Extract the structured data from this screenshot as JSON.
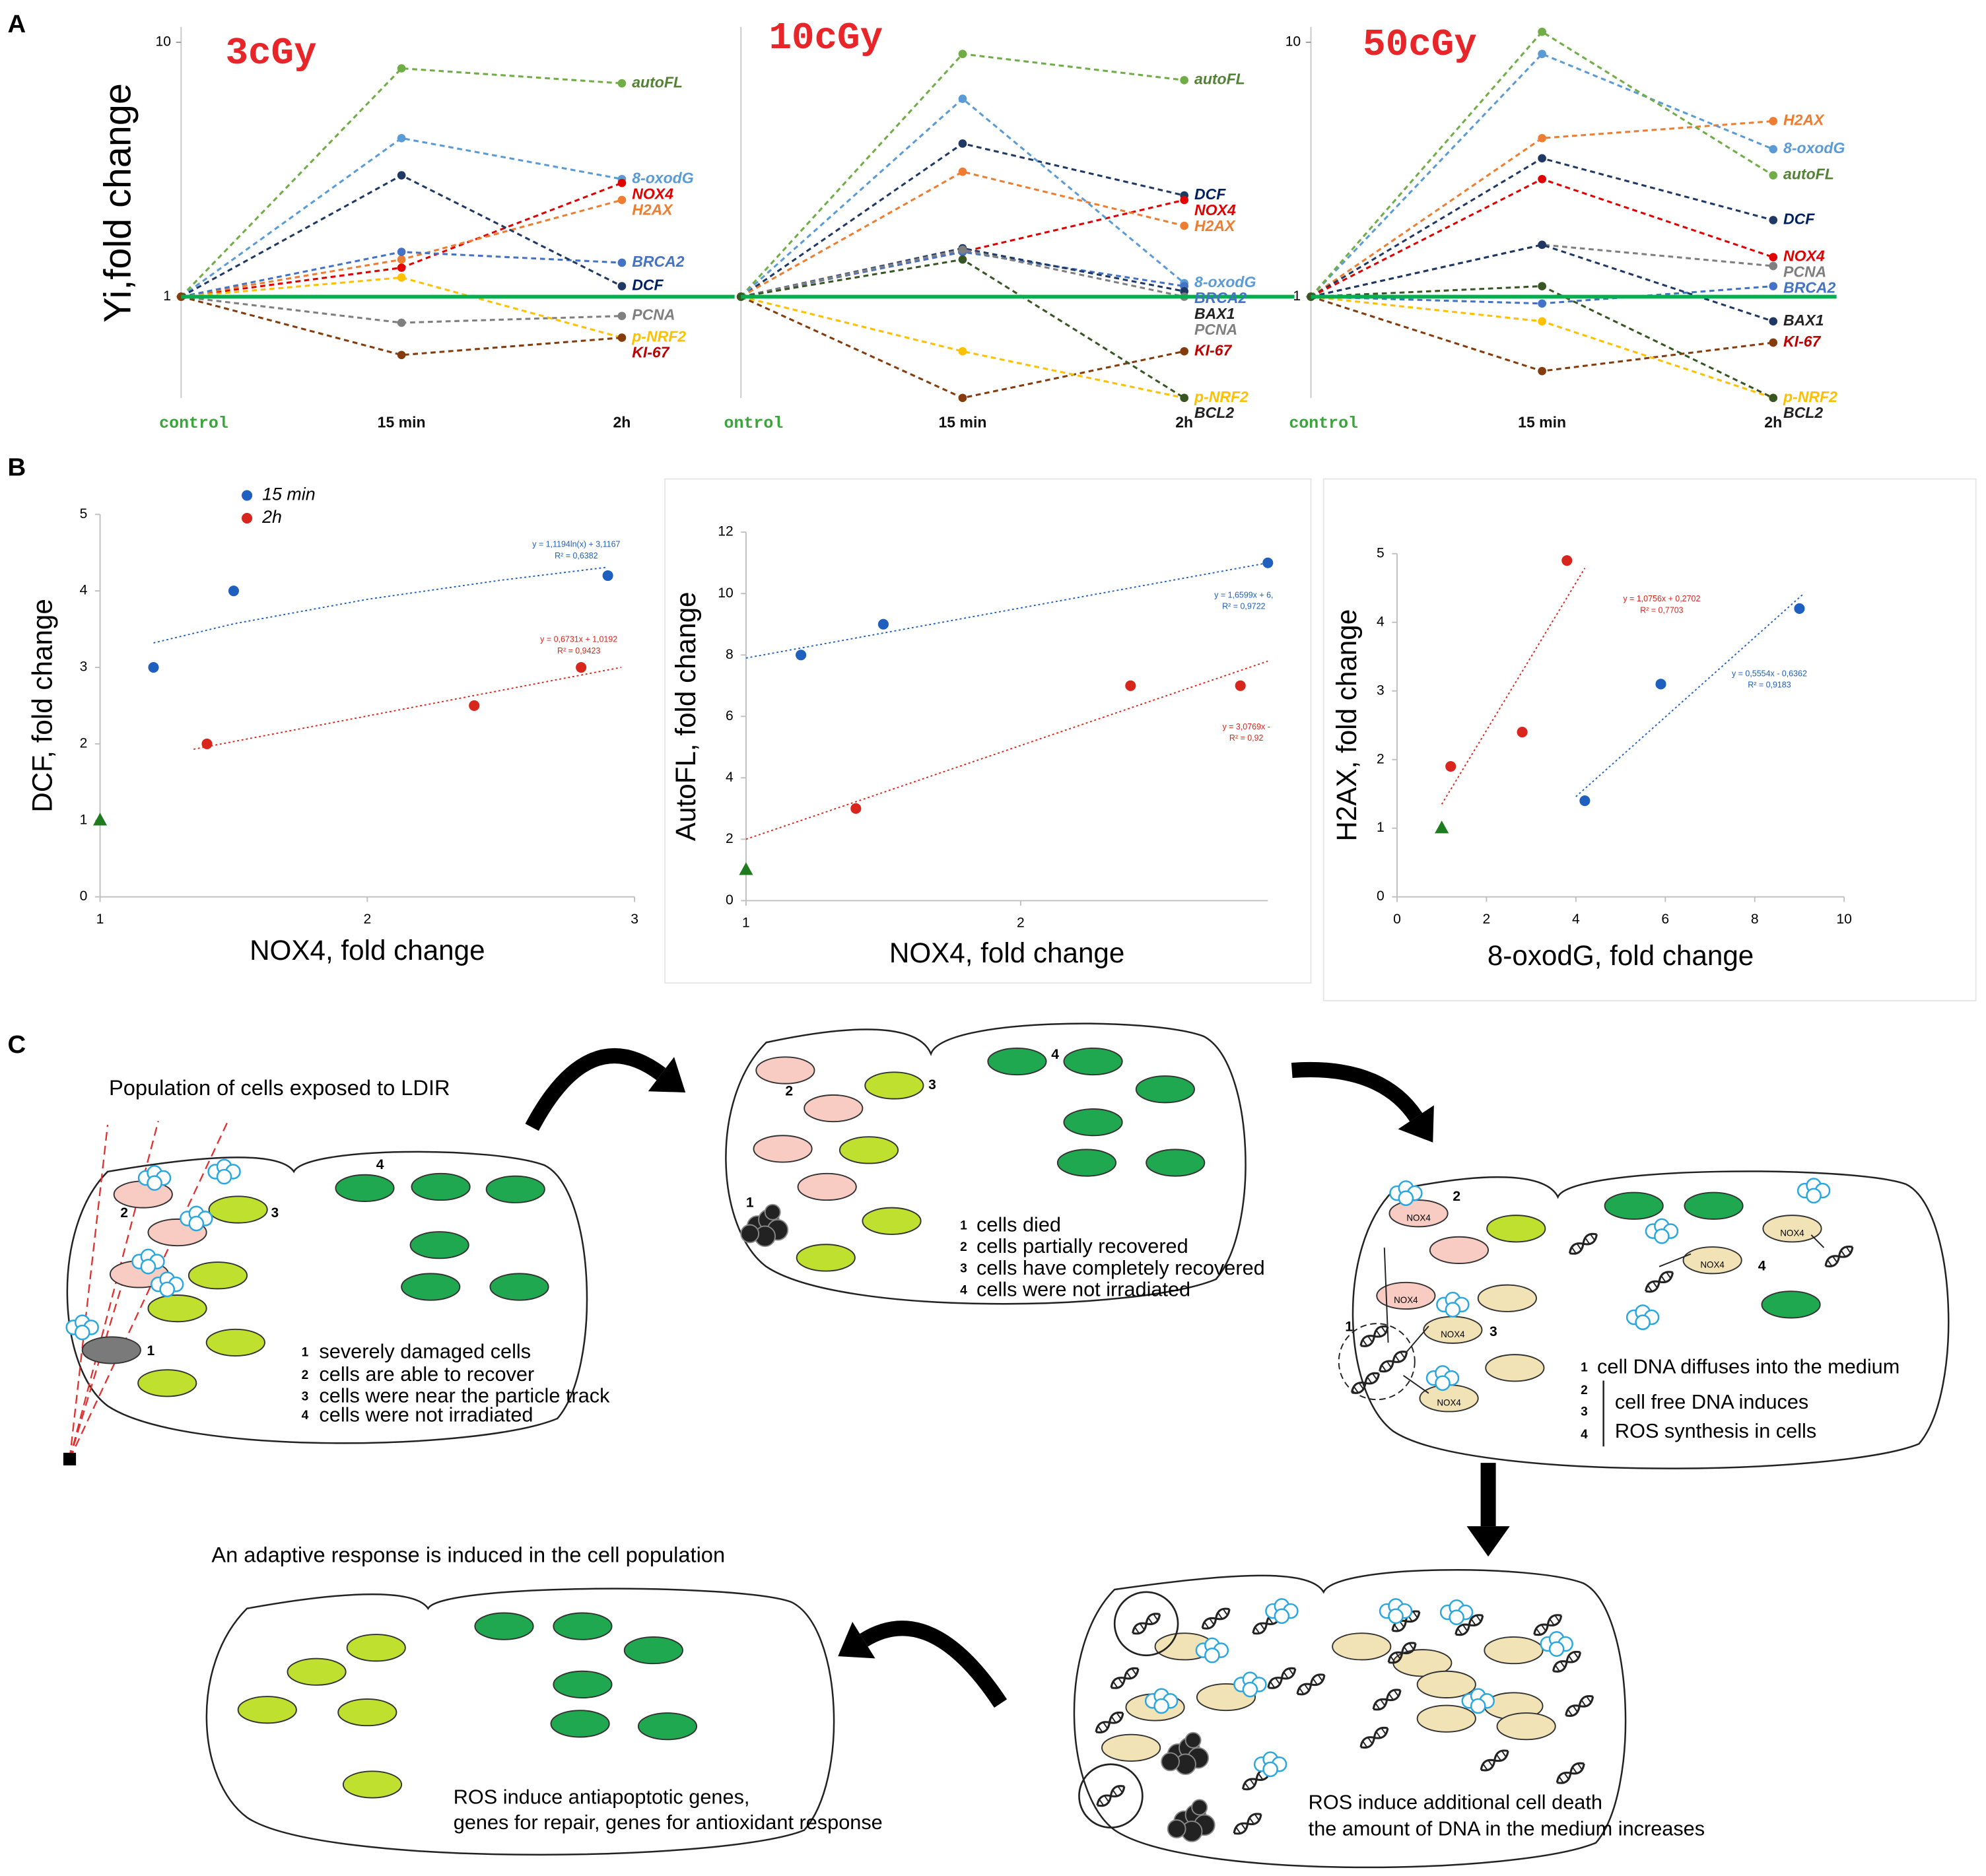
{
  "panel_labels": [
    "A",
    "B",
    "C"
  ],
  "chart_data": [
    {
      "type": "line",
      "title": "3cGy",
      "title_color": "#e8262a",
      "ylabel": "Yi,fold change",
      "categories": [
        "control",
        "15 min",
        "2h"
      ],
      "category_colors": [
        "#3aa63a",
        "#111111",
        "#111111"
      ],
      "log_y": true,
      "ylim": [
        0.4,
        11.5
      ],
      "yticks": [
        1,
        10
      ],
      "baseline": 1,
      "baseline_color": "#00b050",
      "series": [
        {
          "name": "autoFL",
          "color": "#70ad47",
          "label_color": "#548235",
          "values": [
            1,
            7.9,
            6.9
          ]
        },
        {
          "name": "8-oxodG",
          "color": "#5b9bd5",
          "values": [
            1,
            4.2,
            2.9
          ]
        },
        {
          "name": "NOX4",
          "color": "#e00000",
          "values": [
            1,
            1.3,
            2.8
          ]
        },
        {
          "name": "H2AX",
          "color": "#ed7d31",
          "values": [
            1,
            1.4,
            2.4
          ]
        },
        {
          "name": "BRCA2",
          "color": "#4472c4",
          "values": [
            1,
            1.5,
            1.36
          ]
        },
        {
          "name": "DCF",
          "color": "#1f3864",
          "label_color": "#002060",
          "values": [
            1,
            3.0,
            1.1
          ]
        },
        {
          "name": "PCNA",
          "color": "#7f7f7f",
          "values": [
            1,
            0.79,
            0.84
          ]
        },
        {
          "name": "p-NRF2",
          "color": "#ffc000",
          "values": [
            1,
            1.19,
            0.69
          ]
        },
        {
          "name": "KI-67",
          "color": "#843c0c",
          "label_color": "#c00000",
          "values": [
            1,
            0.59,
            0.69
          ]
        }
      ]
    },
    {
      "type": "line",
      "title": "10cGy",
      "title_color": "#e8262a",
      "categories": [
        "ontrol",
        "15 min",
        "2h"
      ],
      "category_colors": [
        "#3aa63a",
        "#111111",
        "#111111"
      ],
      "log_y": true,
      "ylim": [
        0.4,
        11.5
      ],
      "baseline": 1,
      "baseline_color": "#00b050",
      "series": [
        {
          "name": "autoFL",
          "color": "#70ad47",
          "label_color": "#548235",
          "values": [
            1,
            9.0,
            7.1
          ]
        },
        {
          "name": "DCF",
          "color": "#1f3864",
          "label_color": "#002060",
          "values": [
            1,
            4.0,
            2.5
          ]
        },
        {
          "name": "NOX4",
          "color": "#e00000",
          "values": [
            1,
            1.5,
            2.4
          ]
        },
        {
          "name": "H2AX",
          "color": "#ed7d31",
          "values": [
            1,
            3.1,
            1.9
          ]
        },
        {
          "name": "8-oxodG",
          "color": "#5b9bd5",
          "values": [
            1,
            6.0,
            1.13
          ]
        },
        {
          "name": "BRCA2",
          "color": "#4472c4",
          "values": [
            1,
            1.5,
            1.1
          ]
        },
        {
          "name": "BAX1",
          "color": "#203864",
          "label_color": "#222222",
          "values": [
            1,
            1.55,
            1.05
          ]
        },
        {
          "name": "PCNA",
          "color": "#7f7f7f",
          "values": [
            1,
            1.53,
            1.0
          ]
        },
        {
          "name": "KI-67",
          "color": "#843c0c",
          "label_color": "#c00000",
          "values": [
            1,
            0.4,
            0.61
          ]
        },
        {
          "name": "p-NRF2",
          "color": "#ffc000",
          "values": [
            1,
            0.61,
            0.4
          ]
        },
        {
          "name": "BCL2",
          "color": "#375623",
          "label_color": "#222222",
          "values": [
            1,
            1.4,
            0.4
          ]
        }
      ]
    },
    {
      "type": "line",
      "title": "50cGy",
      "title_color": "#e8262a",
      "categories": [
        "control",
        "15 min",
        "2h"
      ],
      "category_colors": [
        "#3aa63a",
        "#111111",
        "#111111"
      ],
      "log_y": true,
      "ylim": [
        0.4,
        11.5
      ],
      "yticks": [
        1,
        10
      ],
      "baseline": 1,
      "baseline_color": "#00b050",
      "series": [
        {
          "name": "H2AX",
          "color": "#ed7d31",
          "values": [
            1,
            4.2,
            4.9
          ]
        },
        {
          "name": "8-oxodG",
          "color": "#5b9bd5",
          "values": [
            1,
            9.0,
            3.8
          ]
        },
        {
          "name": "autoFL",
          "color": "#70ad47",
          "label_color": "#548235",
          "values": [
            1,
            11,
            3.0
          ]
        },
        {
          "name": "DCF",
          "color": "#1f3864",
          "label_color": "#002060",
          "values": [
            1,
            3.5,
            2.0
          ]
        },
        {
          "name": "NOX4",
          "color": "#e00000",
          "values": [
            1,
            2.9,
            1.43
          ]
        },
        {
          "name": "PCNA",
          "color": "#7f7f7f",
          "values": [
            1,
            1.6,
            1.32
          ]
        },
        {
          "name": "BRCA2",
          "color": "#4472c4",
          "values": [
            1,
            0.94,
            1.1
          ]
        },
        {
          "name": "BAX1",
          "color": "#203864",
          "label_color": "#222222",
          "values": [
            1,
            1.6,
            0.8
          ]
        },
        {
          "name": "KI-67",
          "color": "#843c0c",
          "label_color": "#c00000",
          "values": [
            1,
            0.51,
            0.66
          ]
        },
        {
          "name": "p-NRF2",
          "color": "#ffc000",
          "values": [
            1,
            0.8,
            0.4
          ]
        },
        {
          "name": "BCL2",
          "color": "#375623",
          "label_color": "#222222",
          "values": [
            1,
            1.1,
            0.4
          ]
        }
      ]
    },
    {
      "type": "scatter",
      "xlabel": "NOX4, fold change",
      "ylabel": "DCF, fold change",
      "xlim": [
        1,
        3
      ],
      "xticks": [
        1,
        2,
        3
      ],
      "ylim": [
        0,
        5
      ],
      "yticks": [
        0,
        1,
        2,
        3,
        4,
        5
      ],
      "legend": "top-left",
      "control_point": {
        "x": 1,
        "y": 1,
        "color": "#1e7b1e"
      },
      "series": [
        {
          "name": "15 min",
          "color": "#1f5fbf",
          "x": [
            1.2,
            1.5,
            2.9
          ],
          "y": [
            3,
            4,
            4.2
          ],
          "trendline": {
            "x": [
              1.2,
              1.5,
              2,
              2.5,
              2.9
            ],
            "y": [
              3.32,
              3.57,
              3.89,
              4.14,
              4.31
            ],
            "equation": "y = 1,1194ln(x) + 3,1167",
            "r2": "R² = 0,6382"
          }
        },
        {
          "name": "2h",
          "color": "#d9261c",
          "x": [
            1.4,
            2.4,
            2.8
          ],
          "y": [
            2,
            2.5,
            3
          ],
          "trendline": {
            "x": [
              1.35,
              2.95
            ],
            "y": [
              1.93,
              3.0
            ],
            "equation": "y = 0,6731x + 1,0192",
            "r2": "R² = 0,9423"
          }
        }
      ]
    },
    {
      "type": "scatter",
      "xlabel": "NOX4, fold change",
      "ylabel": "AutoFL, fold change",
      "xlim": [
        1,
        2.9
      ],
      "xticks": [
        1,
        2
      ],
      "ylim": [
        0,
        12
      ],
      "yticks": [
        0,
        2,
        4,
        6,
        8,
        10,
        12
      ],
      "control_point": {
        "x": 1,
        "y": 1,
        "color": "#1e7b1e"
      },
      "series": [
        {
          "color": "#1f5fbf",
          "x": [
            1.2,
            1.5,
            2.9
          ],
          "y": [
            8,
            9,
            11
          ],
          "trendline": {
            "x": [
              1,
              2.9
            ],
            "y": [
              7.9,
              11
            ],
            "equation": "y = 1,6599x + 6,",
            "r2": "R² = 0,9722"
          }
        },
        {
          "color": "#d9261c",
          "x": [
            1.4,
            2.4,
            2.8
          ],
          "y": [
            3,
            7,
            7
          ],
          "trendline": {
            "x": [
              1,
              2.9
            ],
            "y": [
              2.0,
              7.8
            ],
            "equation": "y = 3,0769x -",
            "r2": "R² = 0,92"
          }
        }
      ]
    },
    {
      "type": "scatter",
      "xlabel": "8-oxodG, fold change",
      "ylabel": "H2AX, fold change",
      "xlim": [
        0,
        10
      ],
      "xticks": [
        0,
        2,
        4,
        6,
        8,
        10
      ],
      "ylim": [
        0,
        5
      ],
      "yticks": [
        0,
        1,
        2,
        3,
        4,
        5
      ],
      "control_point": {
        "x": 1,
        "y": 1,
        "color": "#1e7b1e"
      },
      "series": [
        {
          "color": "#1f5fbf",
          "x": [
            4.2,
            5.9,
            9
          ],
          "y": [
            1.4,
            3.1,
            4.2
          ],
          "trendline": {
            "x": [
              4,
              9.1
            ],
            "y": [
              1.46,
              4.42
            ],
            "equation": "y = 0,5554x - 0,6362",
            "r2": "R² = 0,9183"
          }
        },
        {
          "color": "#d9261c",
          "x": [
            1.2,
            2.8,
            3.8
          ],
          "y": [
            1.9,
            2.4,
            4.9
          ],
          "trendline": {
            "x": [
              1,
              4.2
            ],
            "y": [
              1.35,
              4.79
            ],
            "equation": "y = 1,0756x + 0,2702",
            "r2": "R² = 0,7703"
          }
        }
      ]
    }
  ],
  "diagram": {
    "stage1": {
      "caption": "Population of cells exposed to LDIR",
      "legend": [
        {
          "n": 1,
          "text": "severely damaged cells"
        },
        {
          "n": 2,
          "text": "cells are able to recover"
        },
        {
          "n": 3,
          "text": "cells were near the particle track"
        },
        {
          "n": 4,
          "text": "cells were not irradiated"
        }
      ]
    },
    "stage2": {
      "legend": [
        {
          "n": 1,
          "text": "cells died"
        },
        {
          "n": 2,
          "text": "cells partially recovered"
        },
        {
          "n": 3,
          "text": "cells have completely recovered"
        },
        {
          "n": 4,
          "text": "cells were not irradiated"
        }
      ]
    },
    "stage3": {
      "legend": [
        {
          "n": 1,
          "text": "cell DNA diffuses into the  medium"
        }
      ],
      "bracket": {
        "numbers": [
          2,
          3,
          4
        ],
        "lines": [
          "cell free DNA induces",
          "ROS synthesis in cells"
        ]
      },
      "cell_label": "NOX4"
    },
    "stage4": {
      "caption": [
        "ROS induce additional cell death",
        "the amount of DNA in the medium increases"
      ]
    },
    "stage5": {
      "title": "An adaptive response is induced in the cell population",
      "caption": [
        "ROS induce antiapoptotic genes,",
        "genes for repair, genes for antioxidant response"
      ]
    }
  }
}
